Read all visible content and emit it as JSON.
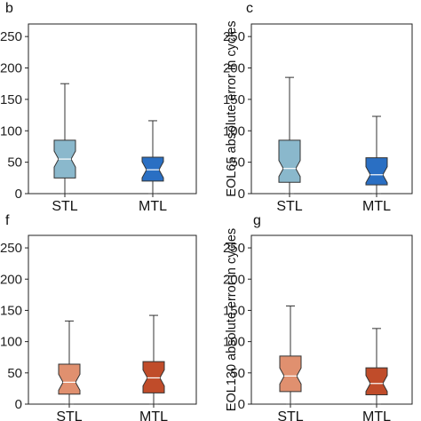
{
  "chart_data": [
    {
      "panel": "b",
      "type": "box",
      "categories": [
        "STL",
        "MTL"
      ],
      "ylabel": "",
      "ylim": [
        0,
        270
      ],
      "yticks": [
        0,
        50,
        100,
        150,
        200,
        250
      ],
      "boxes": [
        {
          "category": "STL",
          "min": 0,
          "q1": 25,
          "median": 55,
          "q3": 85,
          "max": 175,
          "color": "#8ab8cc"
        },
        {
          "category": "MTL",
          "min": 0,
          "q1": 20,
          "median": 38,
          "q3": 58,
          "max": 116,
          "color": "#2a6fc3"
        }
      ]
    },
    {
      "panel": "c",
      "type": "box",
      "categories": [
        "STL",
        "MTL"
      ],
      "ylabel": "EOL65 absolute error in cycles",
      "ylim": [
        0,
        270
      ],
      "yticks": [
        0,
        50,
        100,
        150,
        200,
        250
      ],
      "boxes": [
        {
          "category": "STL",
          "min": 0,
          "q1": 18,
          "median": 40,
          "q3": 85,
          "max": 185,
          "color": "#8ab8cc"
        },
        {
          "category": "MTL",
          "min": 0,
          "q1": 14,
          "median": 30,
          "q3": 57,
          "max": 123,
          "color": "#2a6fc3"
        }
      ]
    },
    {
      "panel": "f",
      "type": "box",
      "categories": [
        "STL",
        "MTL"
      ],
      "ylabel": "",
      "ylim": [
        0,
        270
      ],
      "yticks": [
        0,
        50,
        100,
        150,
        200,
        250
      ],
      "boxes": [
        {
          "category": "STL",
          "min": 0,
          "q1": 16,
          "median": 35,
          "q3": 64,
          "max": 133,
          "color": "#e0906f"
        },
        {
          "category": "MTL",
          "min": 0,
          "q1": 18,
          "median": 42,
          "q3": 68,
          "max": 142,
          "color": "#c04c2a"
        }
      ]
    },
    {
      "panel": "g",
      "type": "box",
      "categories": [
        "STL",
        "MTL"
      ],
      "ylabel": "EOL130 absolute error in cycles",
      "ylim": [
        0,
        270
      ],
      "yticks": [
        0,
        50,
        100,
        150,
        200,
        250
      ],
      "boxes": [
        {
          "category": "STL",
          "min": 0,
          "q1": 20,
          "median": 45,
          "q3": 77,
          "max": 157,
          "color": "#e0906f"
        },
        {
          "category": "MTL",
          "min": 0,
          "q1": 15,
          "median": 33,
          "q3": 58,
          "max": 121,
          "color": "#c04c2a"
        }
      ]
    }
  ]
}
